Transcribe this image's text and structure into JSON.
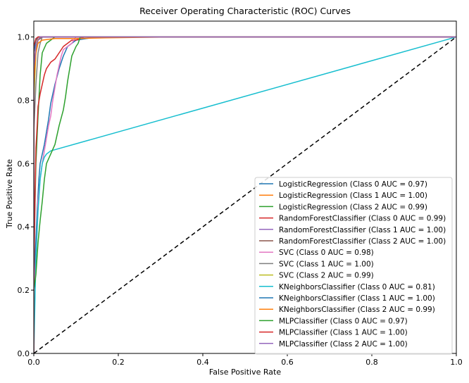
{
  "chart_data": {
    "type": "line",
    "title": "Receiver Operating Characteristic (ROC) Curves",
    "xlabel": "False Positive Rate",
    "ylabel": "True Positive Rate",
    "xlim": [
      0,
      1
    ],
    "ylim": [
      0,
      1.05
    ],
    "xticks": [
      "0.0",
      "0.2",
      "0.4",
      "0.6",
      "0.8",
      "1.0"
    ],
    "yticks": [
      "0.0",
      "0.2",
      "0.4",
      "0.6",
      "0.8",
      "1.0"
    ],
    "grid": false,
    "legend_position": "lower-right",
    "diagonal": {
      "x": [
        0,
        1
      ],
      "y": [
        0,
        1
      ],
      "color": "#000000",
      "style": "dashed"
    },
    "series": [
      {
        "name": "LogisticRegression (Class 0 AUC = 0.97)",
        "color": "#1f77b4",
        "x": [
          0,
          0,
          0.003,
          0.005,
          0.008,
          0.01,
          0.012,
          0.015,
          0.02,
          0.025,
          0.03,
          0.035,
          0.04,
          0.05,
          0.06,
          0.07,
          0.08,
          0.1,
          0.15,
          1
        ],
        "y": [
          0,
          0.2,
          0.3,
          0.36,
          0.45,
          0.5,
          0.55,
          0.6,
          0.63,
          0.66,
          0.7,
          0.74,
          0.79,
          0.85,
          0.9,
          0.94,
          0.97,
          0.99,
          1.0,
          1.0
        ]
      },
      {
        "name": "LogisticRegression (Class 1 AUC = 1.00)",
        "color": "#ff7f0e",
        "x": [
          0,
          0,
          0.005,
          0.01,
          0.02,
          1
        ],
        "y": [
          0,
          0.9,
          0.97,
          1.0,
          1.0,
          1.0
        ]
      },
      {
        "name": "LogisticRegression (Class 2 AUC = 0.99)",
        "color": "#2ca02c",
        "x": [
          0,
          0,
          0.005,
          0.01,
          0.015,
          0.02,
          0.03,
          0.05,
          1
        ],
        "y": [
          0,
          0.3,
          0.6,
          0.75,
          0.88,
          0.95,
          0.98,
          1.0,
          1.0
        ]
      },
      {
        "name": "RandomForestClassifier (Class 0 AUC = 0.99)",
        "color": "#d62728",
        "x": [
          0,
          0,
          0.003,
          0.005,
          0.008,
          0.01,
          0.015,
          0.02,
          0.025,
          0.03,
          0.04,
          0.05,
          0.06,
          0.07,
          0.08,
          0.09,
          0.1,
          0.12,
          0.15,
          0.2,
          1
        ],
        "y": [
          0,
          0.2,
          0.5,
          0.65,
          0.72,
          0.78,
          0.82,
          0.85,
          0.88,
          0.9,
          0.92,
          0.93,
          0.95,
          0.97,
          0.98,
          0.99,
          0.99,
          1.0,
          1.0,
          1.0,
          1.0
        ]
      },
      {
        "name": "RandomForestClassifier (Class 1 AUC = 1.00)",
        "color": "#9467bd",
        "x": [
          0,
          0,
          0.005,
          0.01,
          1
        ],
        "y": [
          0,
          0.95,
          0.99,
          1.0,
          1.0
        ]
      },
      {
        "name": "RandomForestClassifier (Class 2 AUC = 1.00)",
        "color": "#8c564b",
        "x": [
          0,
          0,
          0.005,
          0.01,
          0.02,
          1
        ],
        "y": [
          0,
          0.9,
          0.96,
          0.99,
          1.0,
          1.0
        ]
      },
      {
        "name": "SVC (Class 0 AUC = 0.98)",
        "color": "#e377c2",
        "x": [
          0,
          0,
          0.005,
          0.008,
          0.01,
          0.015,
          0.02,
          0.025,
          0.03,
          0.035,
          0.04,
          0.045,
          0.05,
          0.055,
          0.06,
          0.065,
          0.07,
          0.08,
          0.09,
          0.1,
          1
        ],
        "y": [
          0,
          0.2,
          0.3,
          0.4,
          0.48,
          0.55,
          0.6,
          0.64,
          0.68,
          0.72,
          0.75,
          0.8,
          0.84,
          0.88,
          0.91,
          0.94,
          0.96,
          0.97,
          0.98,
          1.0,
          1.0
        ]
      },
      {
        "name": "SVC (Class 1 AUC = 1.00)",
        "color": "#7f7f7f",
        "x": [
          0,
          0,
          0.005,
          0.01,
          0.015,
          0.02,
          1
        ],
        "y": [
          0,
          0.7,
          0.85,
          0.95,
          0.98,
          1.0,
          1.0
        ]
      },
      {
        "name": "SVC (Class 2 AUC = 0.99)",
        "color": "#bcbd22",
        "x": [
          0,
          0,
          0.005,
          0.01,
          0.015,
          1
        ],
        "y": [
          0,
          0.8,
          0.95,
          0.99,
          1.0,
          1.0
        ]
      },
      {
        "name": "KNeighborsClassifier (Class 0 AUC = 0.81)",
        "color": "#17becf",
        "x": [
          0,
          0.005,
          0.01,
          0.015,
          0.02,
          0.025,
          0.03,
          0.04,
          1
        ],
        "y": [
          0,
          0.3,
          0.45,
          0.55,
          0.6,
          0.62,
          0.63,
          0.64,
          1.0
        ]
      },
      {
        "name": "KNeighborsClassifier (Class 1 AUC = 1.00)",
        "color": "#1f77b4",
        "x": [
          0,
          0,
          0.005,
          0.01,
          1
        ],
        "y": [
          0,
          0.95,
          0.99,
          1.0,
          1.0
        ]
      },
      {
        "name": "KNeighborsClassifier (Class 2 AUC = 0.99)",
        "color": "#ff7f0e",
        "x": [
          0,
          0,
          0.005,
          0.01,
          0.02,
          0.05,
          0.1,
          0.17,
          0.33,
          1
        ],
        "y": [
          0,
          0.85,
          0.95,
          0.98,
          0.99,
          0.995,
          0.995,
          0.997,
          1.0,
          1.0
        ]
      },
      {
        "name": "MLPClassifier (Class 0 AUC = 0.97)",
        "color": "#2ca02c",
        "x": [
          0,
          0,
          0.005,
          0.01,
          0.015,
          0.02,
          0.025,
          0.03,
          0.04,
          0.05,
          0.06,
          0.07,
          0.075,
          0.08,
          0.085,
          0.09,
          0.1,
          0.105,
          0.11,
          1
        ],
        "y": [
          0,
          0.2,
          0.25,
          0.35,
          0.42,
          0.48,
          0.55,
          0.6,
          0.63,
          0.66,
          0.72,
          0.77,
          0.81,
          0.86,
          0.9,
          0.94,
          0.97,
          0.98,
          1.0,
          1.0
        ]
      },
      {
        "name": "MLPClassifier (Class 1 AUC = 1.00)",
        "color": "#d62728",
        "x": [
          0,
          0,
          0.005,
          0.01,
          1
        ],
        "y": [
          0,
          0.97,
          0.995,
          1.0,
          1.0
        ]
      },
      {
        "name": "MLPClassifier (Class 2 AUC = 1.00)",
        "color": "#9467bd",
        "x": [
          0,
          0,
          0.005,
          0.01,
          0.015,
          1
        ],
        "y": [
          0,
          0.9,
          0.97,
          0.99,
          1.0,
          1.0
        ]
      }
    ]
  }
}
